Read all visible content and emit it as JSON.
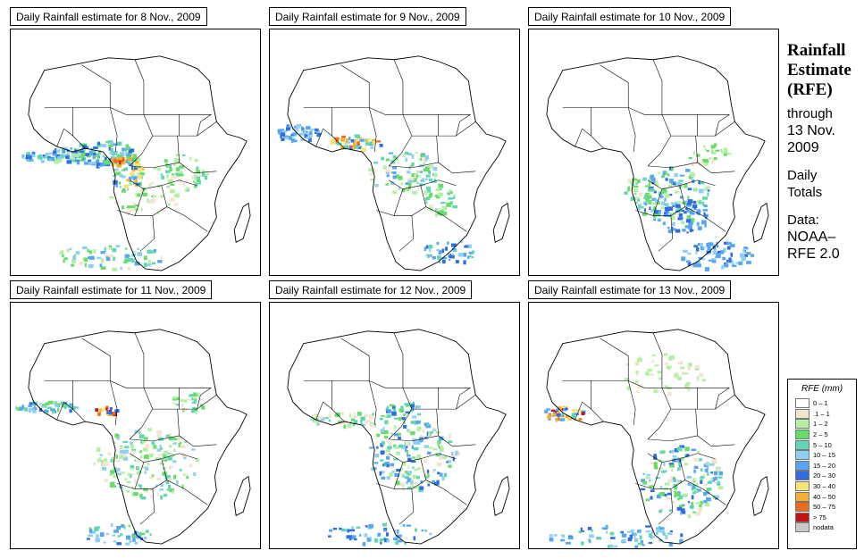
{
  "panels": [
    {
      "title": "Daily Rainfall estimate for  8 Nov., 2009",
      "pattern": "west-central"
    },
    {
      "title": "Daily Rainfall estimate for  9 Nov., 2009",
      "pattern": "west-congo"
    },
    {
      "title": "Daily Rainfall estimate for  10 Nov., 2009",
      "pattern": "south-central"
    },
    {
      "title": "Daily Rainfall estimate for  11 Nov., 2009",
      "pattern": "central-wide"
    },
    {
      "title": "Daily Rainfall estimate for  12 Nov., 2009",
      "pattern": "central-east"
    },
    {
      "title": "Daily Rainfall estimate for  13 Nov., 2009",
      "pattern": "southern"
    }
  ],
  "side": {
    "title_line1": "Rainfall",
    "title_line2": "Estimate",
    "title_line3": "(RFE)",
    "through": "through",
    "date_line1": "13 Nov.",
    "date_line2": "2009",
    "daily1": "Daily",
    "daily2": "Totals",
    "data1": "Data:",
    "data2": "NOAA–",
    "data3": "RFE 2.0"
  },
  "legend": {
    "title": "RFE (mm)",
    "items": [
      {
        "label": "0 – 1",
        "color": "#ffffff"
      },
      {
        "label": ".1 – 1",
        "color": "#f1e5cf"
      },
      {
        "label": "1 – 2",
        "color": "#b4f0a4"
      },
      {
        "label": "2 – 5",
        "color": "#66dd66"
      },
      {
        "label": "5 – 10",
        "color": "#5ed7b4"
      },
      {
        "label": "10 – 15",
        "color": "#8fd0f2"
      },
      {
        "label": "15 – 20",
        "color": "#56a7f0"
      },
      {
        "label": "20 – 30",
        "color": "#2f6ee0"
      },
      {
        "label": "30 – 40",
        "color": "#f6e476"
      },
      {
        "label": "40 – 50",
        "color": "#f5b030"
      },
      {
        "label": "50 – 75",
        "color": "#ef6a1a"
      },
      {
        "label": "> 75",
        "color": "#c41212"
      },
      {
        "label": "nodata",
        "color": "#c8c8c8"
      }
    ]
  }
}
